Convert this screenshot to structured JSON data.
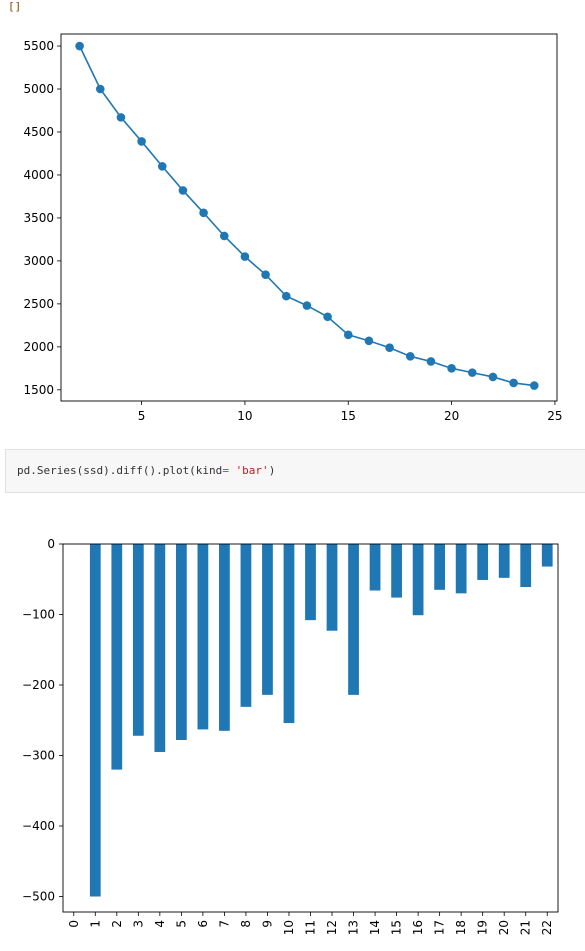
{
  "output_top": {
    "text": "[]"
  },
  "code_cell": {
    "code_prefix": "pd.Series(ssd).diff().plot(kind",
    "code_op": "=",
    "code_space": " ",
    "code_str": "'bar'",
    "code_suffix": ")"
  },
  "colors": {
    "series": "#1f77b4",
    "code_bg": "#f7f7f7",
    "string": "#ba2121"
  },
  "chart_data": [
    {
      "type": "line",
      "title": "",
      "xlabel": "",
      "ylabel": "",
      "x": [
        2,
        3,
        4,
        5,
        6,
        7,
        8,
        9,
        10,
        11,
        12,
        13,
        14,
        15,
        16,
        17,
        18,
        19,
        20,
        21,
        22,
        23,
        24
      ],
      "series": [
        {
          "values": [
            5500,
            5000,
            4670,
            4390,
            4100,
            3820,
            3560,
            3290,
            3050,
            2840,
            2590,
            2480,
            2350,
            2140,
            2070,
            1990,
            1890,
            1830,
            1750,
            1700,
            1650,
            1580,
            1550
          ]
        }
      ],
      "xlim": [
        1.1,
        25.1
      ],
      "ylim": [
        1370,
        5640
      ],
      "xticks": [
        "5",
        "10",
        "15",
        "20",
        "25"
      ],
      "yticks": [
        "1500",
        "2000",
        "2500",
        "3000",
        "3500",
        "4000",
        "4500",
        "5000",
        "5500"
      ],
      "markers": true,
      "grid": false
    },
    {
      "type": "bar",
      "title": "",
      "xlabel": "",
      "ylabel": "",
      "categories": [
        "0",
        "1",
        "2",
        "3",
        "4",
        "5",
        "6",
        "7",
        "8",
        "9",
        "10",
        "11",
        "12",
        "13",
        "14",
        "15",
        "16",
        "17",
        "18",
        "19",
        "20",
        "21",
        "22"
      ],
      "values": [
        null,
        -500,
        -320,
        -272,
        -295,
        -278,
        -263,
        -265,
        -231,
        -214,
        -254,
        -108,
        -123,
        -214,
        -66,
        -76,
        -101,
        -65,
        -70,
        -51,
        -48,
        -61,
        -32
      ],
      "ylim": [
        -522,
        0
      ],
      "yticks": [
        "0",
        "−100",
        "−200",
        "−300",
        "−400",
        "−500"
      ],
      "grid": false
    }
  ]
}
